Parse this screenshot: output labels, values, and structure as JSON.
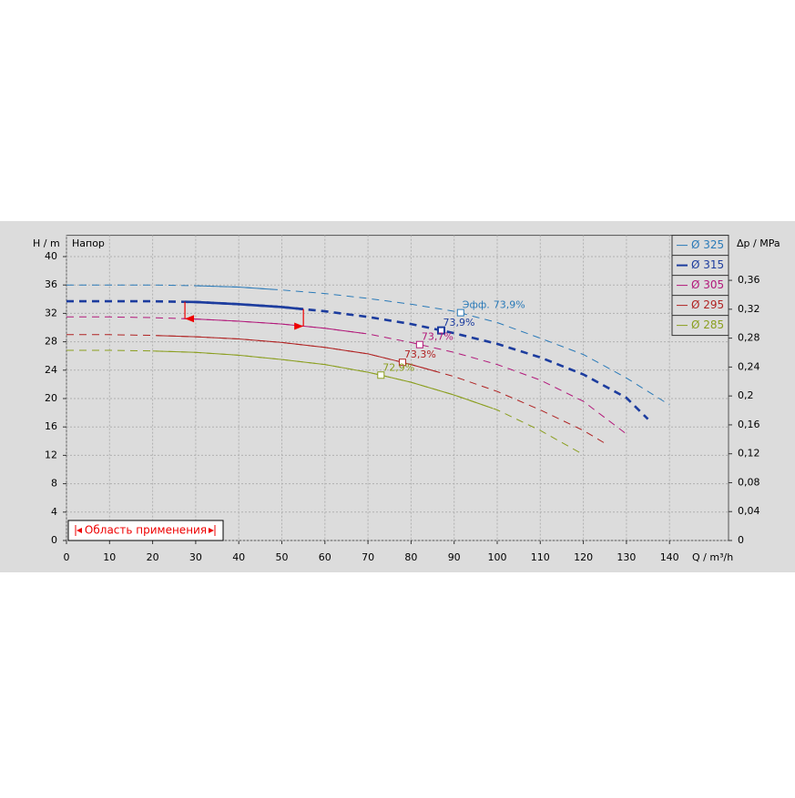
{
  "chart_data": {
    "type": "line",
    "title": "Напор",
    "y_label": "H / m",
    "y2_label": "Δp / MPa",
    "x_label": "Q / m³/h",
    "efficiency_label": "Эфф.",
    "range_label": "Область применения",
    "application_range": [
      27.5,
      55
    ],
    "xlim": [
      0,
      153.7
    ],
    "ylim": [
      0,
      43
    ],
    "y2lim": [
      0,
      0.4223
    ],
    "xticks": [
      0,
      10,
      20,
      30,
      40,
      50,
      60,
      70,
      80,
      90,
      100,
      110,
      120,
      130,
      140
    ],
    "yticks": [
      0,
      4,
      8,
      12,
      16,
      20,
      24,
      28,
      32,
      36,
      40
    ],
    "y2ticks": [
      0,
      {
        "value": 0.04,
        "label": "0,04"
      },
      {
        "value": 0.08,
        "label": "0,08"
      },
      {
        "value": 0.12,
        "label": "0,12"
      },
      {
        "value": 0.16,
        "label": "0,16"
      },
      {
        "value": 0.2,
        "label": "0,2"
      },
      {
        "value": 0.24,
        "label": "0,24"
      },
      {
        "value": 0.28,
        "label": "0,28"
      },
      {
        "value": 0.32,
        "label": "0,32"
      },
      {
        "value": 0.36,
        "label": "0,36"
      }
    ],
    "grid": true,
    "legend": "top-right",
    "series": [
      {
        "name": "Ø 325",
        "color": "#2a7ab8",
        "solid_from": 30,
        "solid_to": 48,
        "bold": false,
        "x": [
          0,
          10,
          20,
          30,
          40,
          50,
          60,
          70,
          80,
          90,
          100,
          110,
          120,
          130,
          140
        ],
        "values": [
          36.0,
          36.0,
          36.0,
          35.9,
          35.7,
          35.3,
          34.8,
          34.1,
          33.3,
          32.3,
          30.7,
          28.5,
          26.2,
          22.9,
          19.1
        ],
        "bep": {
          "x": 91.5,
          "value": 32.1,
          "label": "73,9%"
        }
      },
      {
        "name": "Ø 315",
        "color": "#1c3c9e",
        "solid_from": 27.5,
        "solid_to": 55,
        "bold": true,
        "x": [
          0,
          10,
          20,
          30,
          40,
          50,
          60,
          70,
          80,
          87,
          90,
          100,
          110,
          120,
          130,
          135
        ],
        "values": [
          33.7,
          33.7,
          33.7,
          33.6,
          33.3,
          32.9,
          32.3,
          31.5,
          30.5,
          29.6,
          29.2,
          27.7,
          25.8,
          23.4,
          20.1,
          17.1
        ],
        "bep": {
          "x": 87,
          "value": 29.6,
          "label": "73,9%"
        }
      },
      {
        "name": "Ø 305",
        "color": "#b2187a",
        "solid_from": 27,
        "solid_to": 69,
        "bold": false,
        "x": [
          0,
          10,
          20,
          30,
          40,
          50,
          60,
          70,
          80,
          82,
          90,
          100,
          110,
          120,
          130
        ],
        "values": [
          31.5,
          31.5,
          31.4,
          31.2,
          30.9,
          30.5,
          29.9,
          29.1,
          27.9,
          27.6,
          26.5,
          24.8,
          22.6,
          19.6,
          15.0
        ],
        "bep": {
          "x": 82,
          "value": 27.6,
          "label": "73,7%"
        }
      },
      {
        "name": "Ø 295",
        "color": "#b02222",
        "solid_from": 21,
        "solid_to": 86,
        "bold": false,
        "x": [
          0,
          10,
          20,
          30,
          40,
          50,
          60,
          70,
          78,
          80,
          90,
          100,
          110,
          120,
          125
        ],
        "values": [
          29.0,
          29.0,
          28.9,
          28.7,
          28.4,
          27.9,
          27.2,
          26.3,
          25.1,
          24.8,
          23.1,
          21.0,
          18.4,
          15.5,
          13.7
        ],
        "bep": {
          "x": 78,
          "value": 25.1,
          "label": "73,3%"
        }
      },
      {
        "name": "Ø 285",
        "color": "#8a9e1e",
        "solid_from": 20,
        "solid_to": 99,
        "bold": false,
        "x": [
          0,
          10,
          20,
          30,
          40,
          50,
          60,
          70,
          73,
          80,
          90,
          100,
          110,
          120
        ],
        "values": [
          26.8,
          26.8,
          26.7,
          26.5,
          26.1,
          25.5,
          24.8,
          23.7,
          23.3,
          22.3,
          20.5,
          18.4,
          15.5,
          12.1
        ],
        "bep": {
          "x": 73,
          "value": 23.3,
          "label": "72,9%"
        }
      }
    ]
  }
}
